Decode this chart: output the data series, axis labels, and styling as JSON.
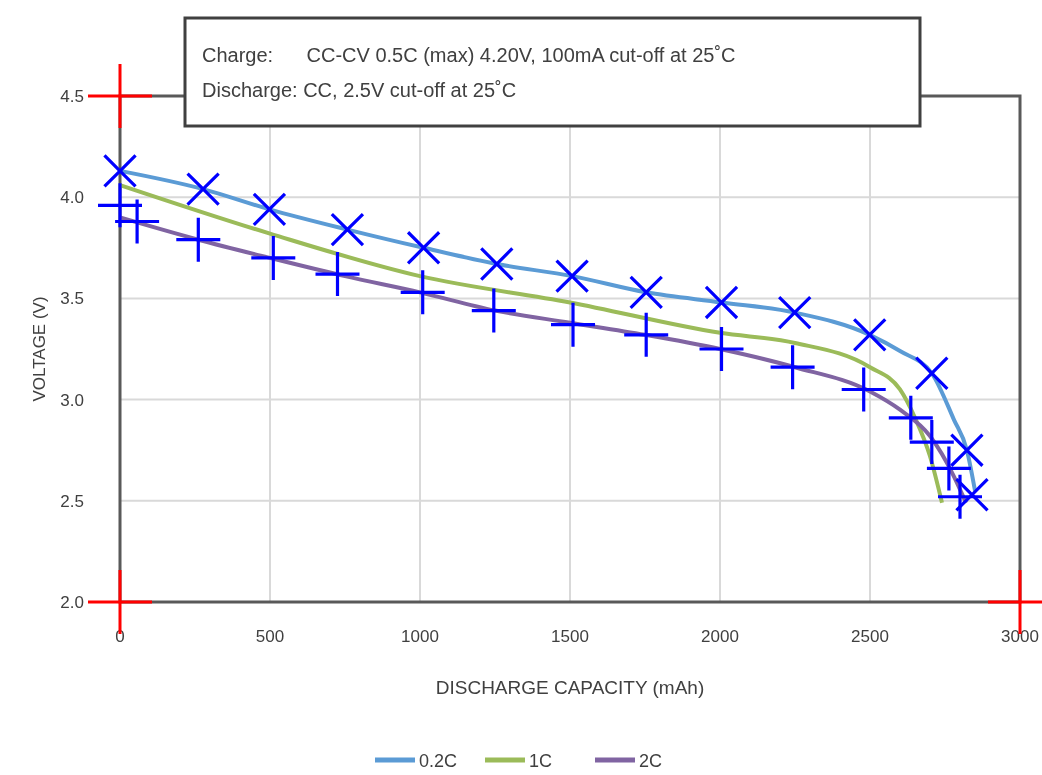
{
  "chart_data": {
    "type": "line",
    "xlabel": "DISCHARGE CAPACITY (mAh)",
    "ylabel": "VOLTAGE (V)",
    "annotations": [
      "Charge:      CC-CV 0.5C (max) 4.20V, 100mA cut-off at 25˚C",
      "Discharge: CC, 2.5V cut-off at 25˚C"
    ],
    "xlim": [
      0,
      3000
    ],
    "xticks": [
      0,
      500,
      1000,
      1500,
      2000,
      2500,
      3000
    ],
    "ylim": [
      2.0,
      4.5
    ],
    "yticks": [
      {
        "value": 2.0,
        "label": "2.0"
      },
      {
        "value": 2.5,
        "label": "2.5"
      },
      {
        "value": 3.0,
        "label": "3.0"
      },
      {
        "value": 3.5,
        "label": "3.5"
      },
      {
        "value": 4.0,
        "label": "4.0"
      },
      {
        "value": 4.5,
        "label": "4.5"
      }
    ],
    "grid": true,
    "legend": "bottom",
    "line_style": "solid",
    "series": [
      {
        "name": "0.2C",
        "color": "#5b9bd5",
        "x": [
          0,
          277,
          498,
          758,
          1012,
          1256,
          1507,
          1754,
          2005,
          2249,
          2499,
          2600,
          2706,
          2780,
          2823,
          2850
        ],
        "values": [
          4.13,
          4.04,
          3.94,
          3.84,
          3.75,
          3.67,
          3.61,
          3.53,
          3.48,
          3.43,
          3.32,
          3.24,
          3.13,
          2.9,
          2.75,
          2.55
        ]
      },
      {
        "name": "1C",
        "color": "#9bbb59",
        "x": [
          0,
          500,
          1000,
          1500,
          2000,
          2250,
          2500,
          2600,
          2650,
          2700,
          2740
        ],
        "values": [
          4.06,
          3.82,
          3.61,
          3.48,
          3.33,
          3.28,
          3.16,
          3.05,
          2.91,
          2.72,
          2.49
        ]
      },
      {
        "name": "2C",
        "color": "#8064a2",
        "x": [
          0,
          261,
          500,
          750,
          1000,
          1250,
          1500,
          1750,
          2000,
          2250,
          2500,
          2600,
          2700,
          2780,
          2820
        ],
        "values": [
          3.9,
          3.79,
          3.7,
          3.61,
          3.53,
          3.44,
          3.38,
          3.32,
          3.25,
          3.16,
          3.04,
          2.95,
          2.82,
          2.62,
          2.49
        ]
      },
      {
        "type": "scatter",
        "marker": "x",
        "color": "#0000ff",
        "x": [
          0,
          277,
          498,
          758,
          1012,
          1256,
          1507,
          1754,
          2005,
          2249,
          2499,
          2706,
          2823,
          2840
        ],
        "values": [
          4.13,
          4.04,
          3.94,
          3.84,
          3.75,
          3.67,
          3.61,
          3.53,
          3.48,
          3.43,
          3.32,
          3.13,
          2.75,
          2.53
        ]
      },
      {
        "type": "scatter",
        "marker": "cross",
        "color": "#0000ff",
        "x": [
          0,
          57,
          261,
          511,
          725,
          1009,
          1246,
          1510,
          1754,
          2005,
          2242,
          2479,
          2636,
          2706,
          2763,
          2800
        ],
        "values": [
          3.96,
          3.88,
          3.79,
          3.7,
          3.62,
          3.53,
          3.44,
          3.37,
          3.32,
          3.25,
          3.16,
          3.05,
          2.91,
          2.79,
          2.66,
          2.52
        ]
      }
    ]
  }
}
